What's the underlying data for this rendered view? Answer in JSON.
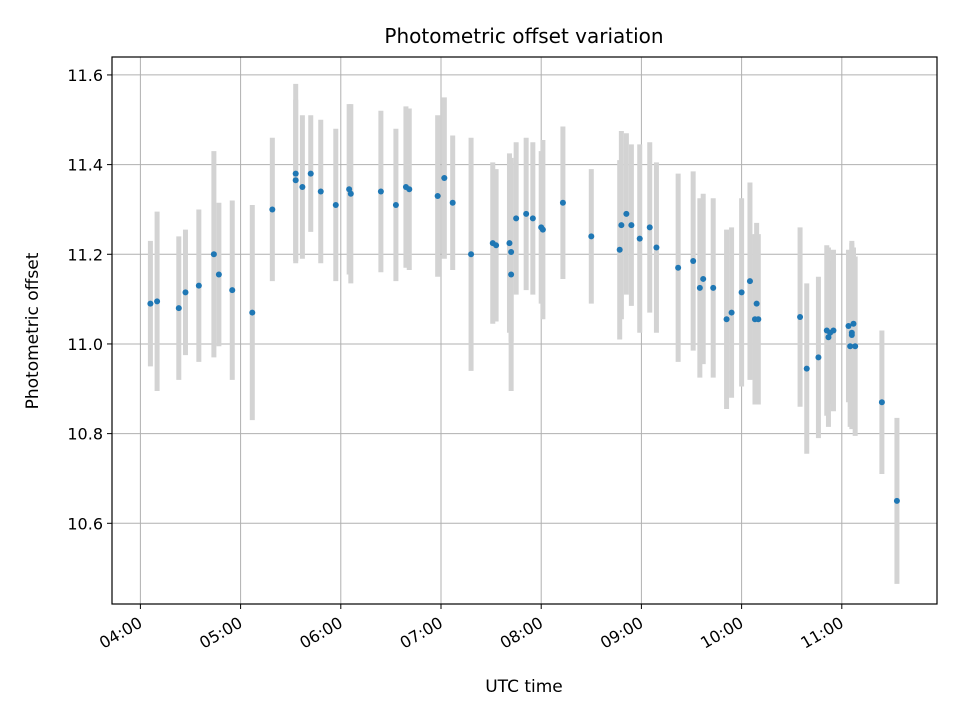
{
  "chart_data": {
    "type": "scatter",
    "title": "Photometric offset variation",
    "xlabel": "UTC time",
    "ylabel": "Photometric offset",
    "xlim": [
      "03:43",
      "11:57"
    ],
    "ylim": [
      10.42,
      11.64
    ],
    "x_ticks": [
      "04:00",
      "05:00",
      "06:00",
      "07:00",
      "08:00",
      "09:00",
      "10:00",
      "11:00"
    ],
    "y_ticks": [
      "10.6",
      "10.8",
      "11.0",
      "11.2",
      "11.4",
      "11.6"
    ],
    "y_tick_values": [
      10.6,
      10.8,
      11.0,
      11.2,
      11.4,
      11.6
    ],
    "grid": true,
    "legend": "none",
    "colors": {
      "points": "#1f77b4",
      "errorbars": "#d3d3d3",
      "grid": "#b0b0b0"
    },
    "series": [
      {
        "x": [
          "04:06",
          "04:10",
          "04:23",
          "04:27",
          "04:35",
          "04:44",
          "04:47",
          "04:55",
          "05:07",
          "05:19",
          "05:33",
          "05:33",
          "05:37",
          "05:42",
          "05:48",
          "05:57",
          "06:05",
          "06:06",
          "06:24",
          "06:33",
          "06:39",
          "06:41",
          "06:58",
          "07:02",
          "07:07",
          "07:18",
          "07:31",
          "07:33",
          "07:41",
          "07:42",
          "07:42",
          "07:45",
          "07:51",
          "07:55",
          "08:00",
          "08:01",
          "08:13",
          "08:30",
          "08:47",
          "08:48",
          "08:51",
          "08:54",
          "08:59",
          "09:05",
          "09:09",
          "09:22",
          "09:31",
          "09:35",
          "09:37",
          "09:43",
          "09:51",
          "09:54",
          "10:00",
          "10:05",
          "10:08",
          "10:09",
          "10:10",
          "10:35",
          "10:39",
          "10:46",
          "10:51",
          "10:52",
          "10:53",
          "10:55",
          "11:04",
          "11:05",
          "11:06",
          "11:06",
          "11:07",
          "11:08",
          "11:24",
          "11:33"
        ],
        "y": [
          11.09,
          11.095,
          11.08,
          11.115,
          11.13,
          11.2,
          11.155,
          11.12,
          11.07,
          11.3,
          11.365,
          11.38,
          11.35,
          11.38,
          11.34,
          11.31,
          11.345,
          11.335,
          11.34,
          11.31,
          11.35,
          11.345,
          11.33,
          11.37,
          11.315,
          11.2,
          11.225,
          11.22,
          11.225,
          11.155,
          11.205,
          11.28,
          11.29,
          11.28,
          11.26,
          11.255,
          11.315,
          11.24,
          11.21,
          11.265,
          11.29,
          11.265,
          11.235,
          11.26,
          11.215,
          11.17,
          11.185,
          11.125,
          11.145,
          11.125,
          11.055,
          11.07,
          11.115,
          11.14,
          11.055,
          11.09,
          11.055,
          11.06,
          10.945,
          10.97,
          11.03,
          11.015,
          11.025,
          11.03,
          11.04,
          10.995,
          11.025,
          11.02,
          11.045,
          10.995,
          10.87,
          10.65
        ],
        "yerr": [
          0.14,
          0.2,
          0.16,
          0.14,
          0.17,
          0.23,
          0.16,
          0.2,
          0.24,
          0.16,
          0.18,
          0.2,
          0.16,
          0.13,
          0.16,
          0.17,
          0.19,
          0.2,
          0.18,
          0.17,
          0.18,
          0.18,
          0.18,
          0.18,
          0.15,
          0.26,
          0.18,
          0.17,
          0.2,
          0.26,
          0.2,
          0.17,
          0.17,
          0.17,
          0.17,
          0.2,
          0.17,
          0.15,
          0.2,
          0.21,
          0.18,
          0.18,
          0.21,
          0.19,
          0.19,
          0.21,
          0.2,
          0.2,
          0.19,
          0.2,
          0.2,
          0.19,
          0.21,
          0.22,
          0.19,
          0.18,
          0.19,
          0.2,
          0.19,
          0.18,
          0.19,
          0.2,
          0.16,
          0.18,
          0.17,
          0.18,
          0.2,
          0.21,
          0.17,
          0.2,
          0.16,
          0.185
        ]
      }
    ]
  }
}
